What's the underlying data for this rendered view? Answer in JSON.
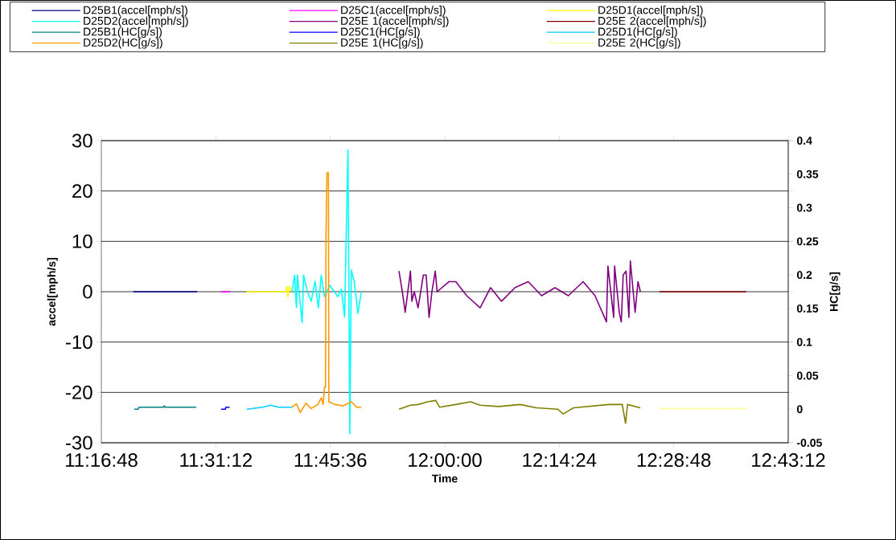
{
  "chart_data": {
    "type": "line",
    "xlabel": "Time",
    "ylabel": "accel[mph/s]",
    "y2label": "HC[g/s]",
    "grid": "y",
    "legend": "top",
    "xlim": [
      11.28,
      12.72
    ],
    "xticks": [
      {
        "value": 11.28,
        "label": "11:16:48"
      },
      {
        "value": 11.52,
        "label": "11:31:12"
      },
      {
        "value": 11.76,
        "label": "11:45:36"
      },
      {
        "value": 12.0,
        "label": "12:00:00"
      },
      {
        "value": 12.24,
        "label": "12:14:24"
      },
      {
        "value": 12.48,
        "label": "12:28:48"
      },
      {
        "value": 12.72,
        "label": "12:43:12"
      }
    ],
    "ylim": [
      -30,
      30
    ],
    "yticks": [
      -30,
      -20,
      -10,
      0,
      10,
      20,
      30
    ],
    "y2lim": [
      -0.05,
      0.4
    ],
    "y2ticks": [
      -0.05,
      0,
      0.05,
      0.1,
      0.15,
      0.2,
      0.25,
      0.3,
      0.35,
      0.4
    ],
    "series": [
      {
        "name": "D25B1(accel[mph/s])",
        "color": "#000080",
        "x": [
          11.347,
          11.481
        ],
        "values": [
          0,
          0
        ]
      },
      {
        "name": "D25C1(accel[mph/s])",
        "color": "#ff00ff",
        "x": [
          11.531,
          11.55
        ],
        "values": [
          0,
          0
        ]
      },
      {
        "name": "D25D1(accel[mph/s])",
        "color": "#ffff00",
        "x": [
          11.584,
          11.667,
          11.669,
          11.671,
          11.674,
          11.68
        ],
        "values": [
          0,
          0,
          1,
          -1,
          1,
          0
        ]
      },
      {
        "name": "D25D2(accel[mph/s])",
        "color": "#00ffff",
        "x": [
          11.68,
          11.685,
          11.689,
          11.691,
          11.701,
          11.704,
          11.712,
          11.72,
          11.728,
          11.735,
          11.741,
          11.748,
          11.759,
          11.768,
          11.776,
          11.783,
          11.79,
          11.797,
          11.801,
          11.804,
          11.81,
          11.818,
          11.825
        ],
        "values": [
          0,
          3.3,
          -3.2,
          3.3,
          -6.1,
          3.3,
          0,
          -1.9,
          2.1,
          -3.2,
          3.3,
          -1,
          1.3,
          0,
          -1,
          0.5,
          -5,
          28.2,
          -28.2,
          4.3,
          2.1,
          -4.3,
          0
        ]
      },
      {
        "name": "D25E 1(accel[mph/s])",
        "color": "#800080",
        "x": [
          11.904,
          11.911,
          11.917,
          11.928,
          11.931,
          11.936,
          11.944,
          11.955,
          11.961,
          11.967,
          11.973,
          11.98,
          11.984,
          12.009,
          12.023,
          12.046,
          12.074,
          12.096,
          12.119,
          12.147,
          12.175,
          12.203,
          12.231,
          12.259,
          12.29,
          12.315,
          12.339,
          12.342,
          12.354,
          12.356,
          12.366,
          12.37,
          12.374,
          12.38,
          12.386,
          12.389,
          12.399,
          12.405,
          12.41
        ],
        "values": [
          4.1,
          0,
          -4.1,
          4.1,
          -1.9,
          0,
          -3.2,
          3.3,
          3.3,
          -5.1,
          0,
          4.1,
          0,
          2,
          2,
          -0.8,
          -3.2,
          0.8,
          -1.9,
          0.8,
          2,
          -0.8,
          0.8,
          -0.8,
          2,
          -0.8,
          -6,
          5.1,
          -5.1,
          5.1,
          -4.3,
          -6,
          3.3,
          4.1,
          -5.1,
          6.1,
          -4.1,
          2,
          0
        ]
      },
      {
        "name": "D25E 2(accel[mph/s])",
        "color": "#800000",
        "x": [
          12.45,
          12.632
        ],
        "values": [
          0,
          0
        ]
      },
      {
        "name": "D25B1(HC[g/s])",
        "color": "#008080",
        "axis": "y2",
        "x": [
          11.349,
          11.357,
          11.359,
          11.41,
          11.412,
          11.414,
          11.479
        ],
        "values": [
          0,
          0,
          0.003,
          0.003,
          0.005,
          0.003,
          0.003
        ]
      },
      {
        "name": "D25C1(HC[g/s])",
        "color": "#0000ff",
        "axis": "y2",
        "x": [
          11.531,
          11.54,
          11.541,
          11.549
        ],
        "values": [
          0,
          0,
          0.003,
          0.003
        ]
      },
      {
        "name": "D25D1(HC[g/s])",
        "color": "#00ccff",
        "axis": "y2",
        "x": [
          11.585,
          11.596,
          11.618,
          11.635,
          11.652,
          11.68
        ],
        "values": [
          0,
          0.001,
          0.003,
          0.006,
          0.003,
          0.003
        ]
      },
      {
        "name": "D25D2(HC[g/s])",
        "color": "#ff9900",
        "axis": "y2",
        "x": [
          11.68,
          11.689,
          11.697,
          11.709,
          11.72,
          11.734,
          11.741,
          11.745,
          11.748,
          11.75,
          11.751,
          11.753,
          11.756,
          11.757,
          11.77,
          11.787,
          11.804,
          11.815,
          11.825
        ],
        "values": [
          0.003,
          0.008,
          -0.005,
          0.009,
          0.001,
          0.007,
          0.017,
          0.007,
          0.033,
          0.033,
          0.26,
          0.352,
          0.352,
          0.011,
          0.007,
          0.005,
          0.011,
          0.003,
          0.003
        ]
      },
      {
        "name": "D25E 1(HC[g/s])",
        "color": "#808000",
        "axis": "y2",
        "x": [
          11.904,
          11.928,
          11.944,
          11.964,
          11.981,
          11.989,
          12.023,
          12.054,
          12.074,
          12.113,
          12.158,
          12.192,
          12.237,
          12.248,
          12.27,
          12.344,
          12.372,
          12.379,
          12.383,
          12.41
        ],
        "values": [
          0,
          0.006,
          0.007,
          0.011,
          0.013,
          0.003,
          0.007,
          0.011,
          0.006,
          0.004,
          0.007,
          0.002,
          0,
          -0.007,
          0.002,
          0.007,
          0.007,
          -0.021,
          0.007,
          0.002
        ]
      },
      {
        "name": "D25E 2(HC[g/s])",
        "color": "#ffff99",
        "axis": "y2",
        "x": [
          12.45,
          12.632
        ],
        "values": [
          0.001,
          0.001
        ]
      }
    ]
  }
}
